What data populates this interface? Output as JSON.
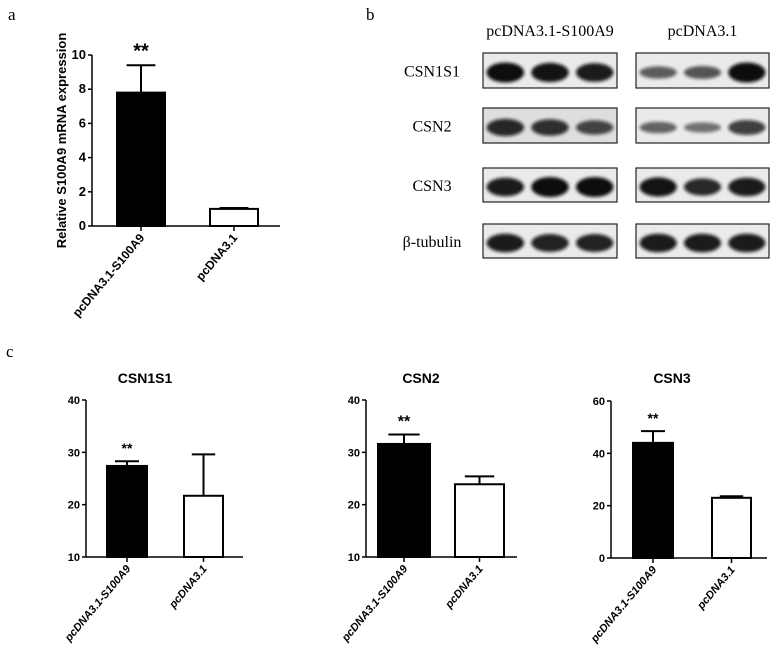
{
  "panel_labels": {
    "a": "a",
    "b": "b",
    "c": "c"
  },
  "chart_data": [
    {
      "type": "bar",
      "panel": "a",
      "title": "",
      "ylabel": "Relative S100A9 mRNA expression",
      "xlabel": "",
      "categories": [
        "pcDNA3.1-S100A9",
        "pcDNA3.1"
      ],
      "values": [
        7.8,
        1.0
      ],
      "error_upper": [
        9.4,
        1.05
      ],
      "fills": [
        "#000000",
        "#ffffff"
      ],
      "significance": [
        "**",
        ""
      ],
      "ylim": [
        0,
        10
      ],
      "yticks": [
        "0",
        "2",
        "4",
        "6",
        "8",
        "10"
      ],
      "ytick_values": [
        0,
        2,
        4,
        6,
        8,
        10
      ],
      "italic_labels": false
    },
    {
      "type": "bar",
      "panel": "c",
      "title": "CSN1S1",
      "ylabel": "",
      "categories": [
        "pcDNA3.1-S100A9",
        "pcDNA3.1"
      ],
      "values": [
        27.4,
        21.7
      ],
      "error_upper": [
        28.3,
        29.6
      ],
      "fills": [
        "#000000",
        "#ffffff"
      ],
      "significance": [
        "**",
        ""
      ],
      "ylim": [
        10,
        40
      ],
      "yticks": [
        "10",
        "20",
        "30",
        "40"
      ],
      "ytick_values": [
        10,
        20,
        30,
        40
      ],
      "italic_labels": true
    },
    {
      "type": "bar",
      "panel": "c",
      "title": "CSN2",
      "ylabel": "",
      "categories": [
        "pcDNA3.1-S100A9",
        "pcDNA3.1"
      ],
      "values": [
        31.6,
        23.9
      ],
      "error_upper": [
        33.4,
        25.4
      ],
      "fills": [
        "#000000",
        "#ffffff"
      ],
      "significance": [
        "**",
        ""
      ],
      "ylim": [
        10,
        40
      ],
      "yticks": [
        "10",
        "20",
        "30",
        "40"
      ],
      "ytick_values": [
        10,
        20,
        30,
        40
      ],
      "italic_labels": true
    },
    {
      "type": "bar",
      "panel": "c",
      "title": "CSN3",
      "ylabel": "",
      "categories": [
        "pcDNA3.1-S100A9",
        "pcDNA3.1"
      ],
      "values": [
        44.0,
        23.0
      ],
      "error_upper": [
        48.5,
        23.6
      ],
      "fills": [
        "#000000",
        "#ffffff"
      ],
      "significance": [
        "**",
        ""
      ],
      "ylim": [
        0,
        60
      ],
      "yticks": [
        "0",
        "20",
        "40",
        "60"
      ],
      "ytick_values": [
        0,
        20,
        40,
        60
      ],
      "italic_labels": true
    }
  ],
  "western_blot": {
    "group_headers": [
      "pcDNA3.1-S100A9",
      "pcDNA3.1"
    ],
    "rows": [
      {
        "label": "CSN1S1",
        "band_intensity": [
          [
            1.0,
            0.95,
            0.9
          ],
          [
            0.45,
            0.5,
            1.0
          ]
        ]
      },
      {
        "label": "CSN2",
        "band_intensity": [
          [
            0.8,
            0.75,
            0.6
          ],
          [
            0.4,
            0.3,
            0.65
          ]
        ]
      },
      {
        "label": "CSN3",
        "band_intensity": [
          [
            0.9,
            1.0,
            1.0
          ],
          [
            0.95,
            0.8,
            0.9
          ]
        ]
      },
      {
        "label": "β-tubulin",
        "band_intensity": [
          [
            0.9,
            0.85,
            0.85
          ],
          [
            0.9,
            0.9,
            0.9
          ]
        ]
      }
    ]
  }
}
